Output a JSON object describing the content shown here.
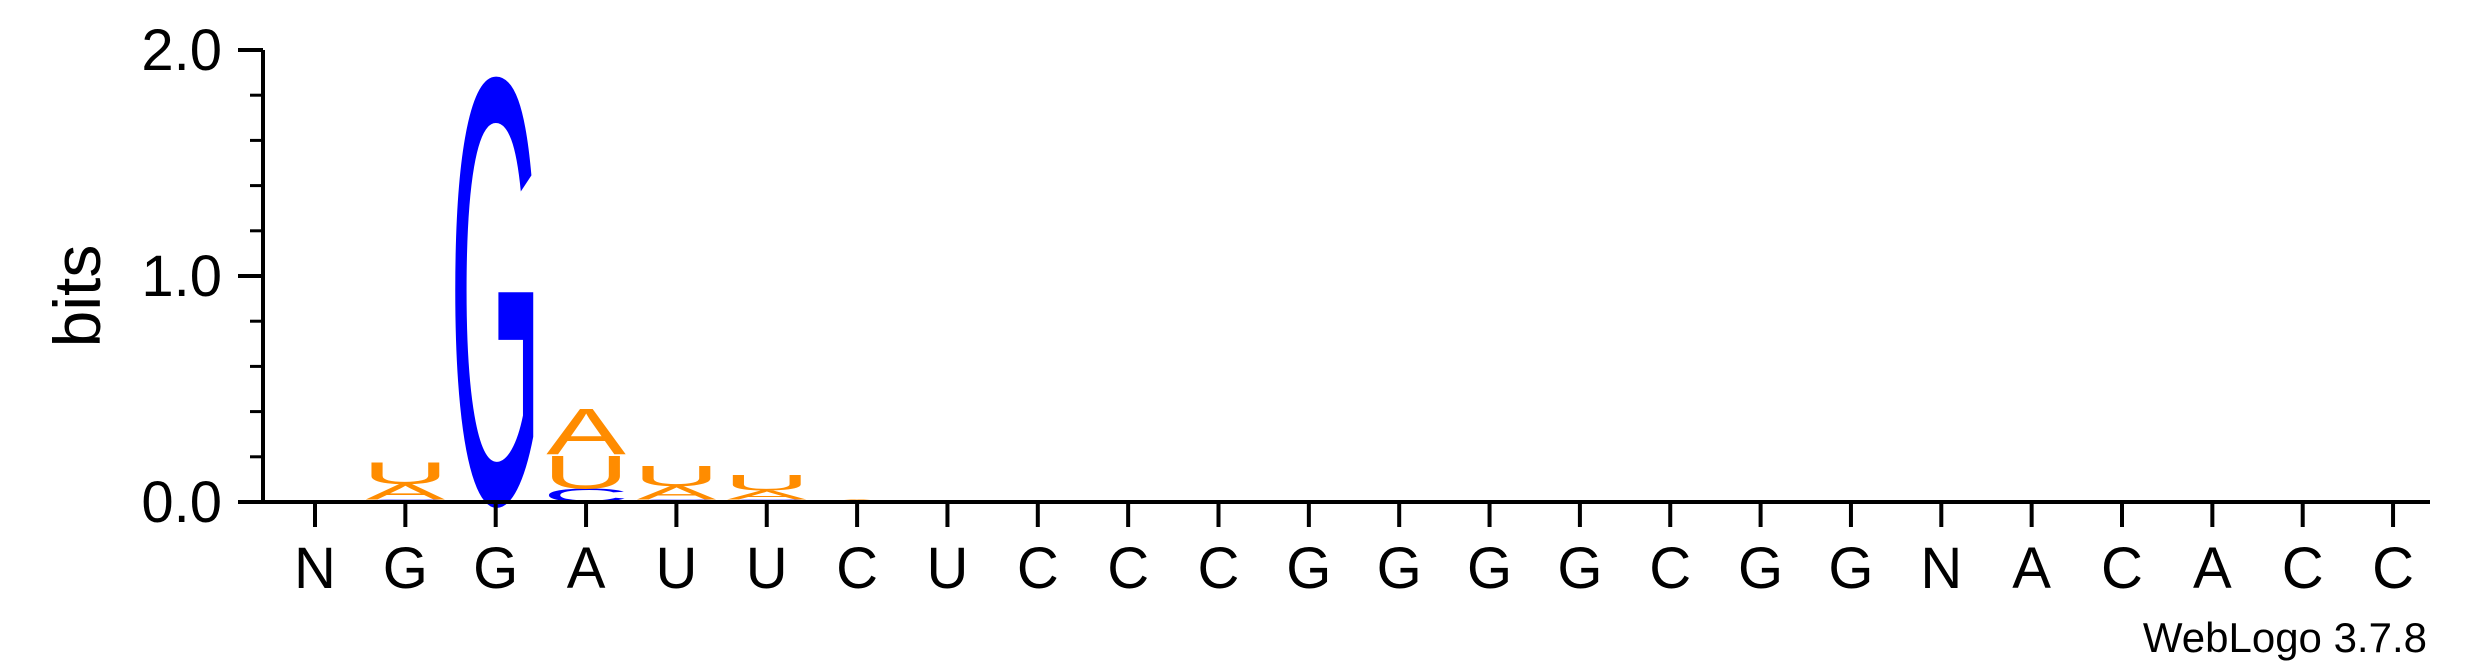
{
  "chart_data": {
    "type": "sequence-logo",
    "title": "",
    "xlabel": "",
    "ylabel": "bits",
    "ylim": [
      0,
      2.0
    ],
    "yticks": [
      {
        "value": 0.0,
        "label": "0.0"
      },
      {
        "value": 1.0,
        "label": "1.0"
      },
      {
        "value": 2.0,
        "label": "2.0"
      }
    ],
    "colors": {
      "A": "#ff8c00",
      "U": "#ff8c00",
      "G": "#0000ff",
      "C": "#0000ff"
    },
    "positions": [
      {
        "label": "N",
        "stack": []
      },
      {
        "label": "G",
        "stack": [
          {
            "letter": "C",
            "bits": 0.01
          },
          {
            "letter": "A",
            "bits": 0.07
          },
          {
            "letter": "U",
            "bits": 0.1
          }
        ]
      },
      {
        "label": "G",
        "stack": [
          {
            "letter": "G",
            "bits": 1.93
          }
        ]
      },
      {
        "label": "A",
        "stack": [
          {
            "letter": "C",
            "bits": 0.06
          },
          {
            "letter": "U",
            "bits": 0.15
          },
          {
            "letter": "A",
            "bits": 0.21
          }
        ]
      },
      {
        "label": "U",
        "stack": [
          {
            "letter": "C",
            "bits": 0.01
          },
          {
            "letter": "A",
            "bits": 0.06
          },
          {
            "letter": "U",
            "bits": 0.09
          }
        ]
      },
      {
        "label": "U",
        "stack": [
          {
            "letter": "C",
            "bits": 0.01
          },
          {
            "letter": "A",
            "bits": 0.04
          },
          {
            "letter": "U",
            "bits": 0.07
          }
        ]
      },
      {
        "label": "C",
        "stack": [
          {
            "letter": "A",
            "bits": 0.01
          }
        ]
      },
      {
        "label": "U",
        "stack": []
      },
      {
        "label": "C",
        "stack": []
      },
      {
        "label": "C",
        "stack": []
      },
      {
        "label": "C",
        "stack": []
      },
      {
        "label": "G",
        "stack": []
      },
      {
        "label": "G",
        "stack": []
      },
      {
        "label": "G",
        "stack": []
      },
      {
        "label": "G",
        "stack": []
      },
      {
        "label": "C",
        "stack": []
      },
      {
        "label": "G",
        "stack": []
      },
      {
        "label": "G",
        "stack": []
      },
      {
        "label": "N",
        "stack": []
      },
      {
        "label": "A",
        "stack": []
      },
      {
        "label": "C",
        "stack": []
      },
      {
        "label": "A",
        "stack": [
          {
            "letter": "A",
            "bits": 0.005
          }
        ]
      },
      {
        "label": "C",
        "stack": [
          {
            "letter": "A",
            "bits": 0.005
          }
        ]
      },
      {
        "label": "C",
        "stack": []
      }
    ]
  },
  "footer": {
    "credit": "WebLogo 3.7.8"
  }
}
